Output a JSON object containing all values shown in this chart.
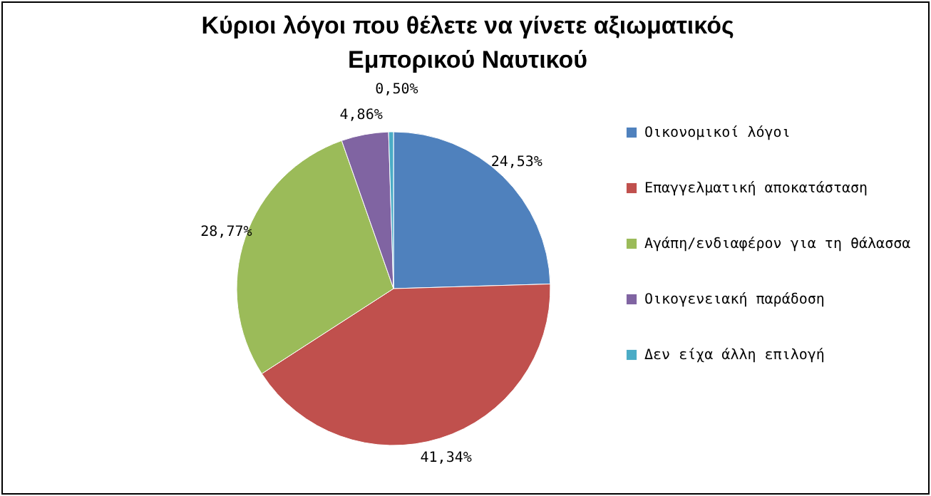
{
  "chart_data": {
    "type": "pie",
    "title": "Κύριοι λόγοι που θέλετε να γίνετε αξιωματικός Εμπορικού Ναυτικού",
    "categories": [
      "Οικονομικοί λόγοι",
      "Επαγγελματική αποκατάσταση",
      "Αγάπη/ενδιαφέρον για τη θάλασσα",
      "Οικογενειακή παράδοση",
      "Δεν είχα άλλη επιλογή"
    ],
    "values": [
      24.53,
      41.34,
      28.77,
      4.86,
      0.5
    ],
    "value_labels": [
      "24,53%",
      "41,34%",
      "28,77%",
      "4,86%",
      "0,50%"
    ],
    "colors": [
      "#4f81bd",
      "#c0504d",
      "#9bbb59",
      "#8064a2",
      "#4bacc6"
    ],
    "legend": "right"
  }
}
